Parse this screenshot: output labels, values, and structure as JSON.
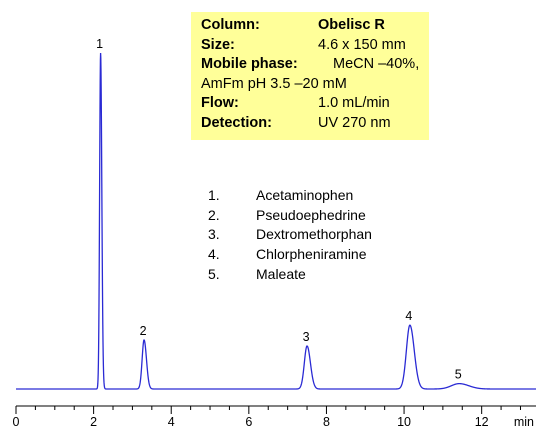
{
  "info": {
    "rows": [
      {
        "label": "Column:",
        "value": "Obelisc R",
        "value_bold": true
      },
      {
        "label": "Size:",
        "value": "4.6 x 150 mm"
      },
      {
        "label": "Mobile phase:",
        "value": "MeCN –40%,"
      },
      {
        "full": "AmFm pH 3.5 –20 mM"
      },
      {
        "label": "Flow:",
        "value": "1.0 mL/min"
      },
      {
        "label": "Detection:",
        "value": "UV 270 nm"
      }
    ]
  },
  "legend": [
    {
      "num": "1.",
      "name": "Acetaminophen"
    },
    {
      "num": "2.",
      "name": "Pseudoephedrine"
    },
    {
      "num": "3.",
      "name": "Dextromethorphan"
    },
    {
      "num": "4.",
      "name": "Chlorpheniramine"
    },
    {
      "num": "5.",
      "name": "Maleate"
    }
  ],
  "chart_data": {
    "type": "line",
    "xlabel": "min",
    "xlim": [
      0,
      13.4
    ],
    "ylim": [
      0,
      100
    ],
    "x_ticks": [
      0,
      2,
      4,
      6,
      8,
      10,
      12
    ],
    "grid": false,
    "line_color": "#2a2ad4",
    "peaks": [
      {
        "label": "1",
        "x": 2.18,
        "height": 100,
        "width": 0.025
      },
      {
        "label": "2",
        "x": 3.3,
        "height": 14.6,
        "width": 0.05
      },
      {
        "label": "3",
        "x": 7.5,
        "height": 12.8,
        "width": 0.07
      },
      {
        "label": "4",
        "x": 10.15,
        "height": 19.0,
        "width": 0.09
      },
      {
        "label": "5",
        "x": 11.42,
        "height": 1.6,
        "width": 0.2
      }
    ]
  }
}
